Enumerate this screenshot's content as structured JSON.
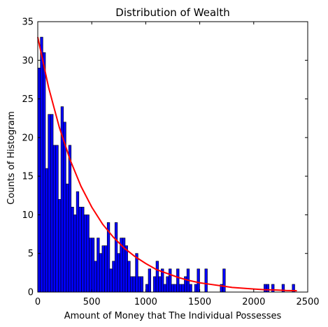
{
  "chart_data": {
    "type": "bar",
    "title": "Distribution of Wealth",
    "xlabel": "Amount of Money that The Individual Possesses",
    "ylabel": "Counts of Histogram",
    "xlim": [
      0,
      2500
    ],
    "ylim": [
      0,
      35
    ],
    "x_ticks": [
      0,
      500,
      1000,
      1500,
      2000,
      2500
    ],
    "y_ticks": [
      0,
      5,
      10,
      15,
      20,
      25,
      30,
      35
    ],
    "grid": false,
    "bar_color": "#0000ff",
    "bar_edge_color": "#000000",
    "series": [
      {
        "kind": "histogram",
        "bin_width": 23.8,
        "bins": [
          {
            "x": 0,
            "count": 29
          },
          {
            "x": 23.8,
            "count": 33
          },
          {
            "x": 47.6,
            "count": 31
          },
          {
            "x": 71.4,
            "count": 16
          },
          {
            "x": 95.2,
            "count": 23
          },
          {
            "x": 119,
            "count": 23
          },
          {
            "x": 142.8,
            "count": 19
          },
          {
            "x": 166.6,
            "count": 19
          },
          {
            "x": 190.4,
            "count": 12
          },
          {
            "x": 214.2,
            "count": 24
          },
          {
            "x": 238,
            "count": 22
          },
          {
            "x": 261.8,
            "count": 14
          },
          {
            "x": 285.6,
            "count": 19
          },
          {
            "x": 309.4,
            "count": 11
          },
          {
            "x": 333.2,
            "count": 10
          },
          {
            "x": 357,
            "count": 13
          },
          {
            "x": 380.8,
            "count": 11
          },
          {
            "x": 404.6,
            "count": 11
          },
          {
            "x": 428.4,
            "count": 10
          },
          {
            "x": 452.2,
            "count": 10
          },
          {
            "x": 476,
            "count": 7
          },
          {
            "x": 499.8,
            "count": 7
          },
          {
            "x": 523.6,
            "count": 4
          },
          {
            "x": 547.4,
            "count": 7
          },
          {
            "x": 571.2,
            "count": 5
          },
          {
            "x": 595,
            "count": 6
          },
          {
            "x": 618.8,
            "count": 6
          },
          {
            "x": 642.6,
            "count": 9
          },
          {
            "x": 666.4,
            "count": 3
          },
          {
            "x": 690.2,
            "count": 4
          },
          {
            "x": 714,
            "count": 9
          },
          {
            "x": 737.8,
            "count": 5
          },
          {
            "x": 761.6,
            "count": 7
          },
          {
            "x": 785.4,
            "count": 7
          },
          {
            "x": 809.2,
            "count": 6
          },
          {
            "x": 833,
            "count": 4
          },
          {
            "x": 856.8,
            "count": 2
          },
          {
            "x": 880.6,
            "count": 2
          },
          {
            "x": 904.4,
            "count": 5
          },
          {
            "x": 928.2,
            "count": 2
          },
          {
            "x": 952,
            "count": 2
          },
          {
            "x": 975.8,
            "count": 0
          },
          {
            "x": 999.6,
            "count": 1
          },
          {
            "x": 1023.4,
            "count": 3
          },
          {
            "x": 1047.2,
            "count": 0
          },
          {
            "x": 1071,
            "count": 2
          },
          {
            "x": 1094.8,
            "count": 4
          },
          {
            "x": 1118.6,
            "count": 2
          },
          {
            "x": 1142.4,
            "count": 3
          },
          {
            "x": 1166.2,
            "count": 1
          },
          {
            "x": 1190,
            "count": 2
          },
          {
            "x": 1213.8,
            "count": 3
          },
          {
            "x": 1237.6,
            "count": 1
          },
          {
            "x": 1261.4,
            "count": 1
          },
          {
            "x": 1285.2,
            "count": 3
          },
          {
            "x": 1309,
            "count": 1
          },
          {
            "x": 1332.8,
            "count": 1
          },
          {
            "x": 1356.6,
            "count": 2
          },
          {
            "x": 1380.4,
            "count": 3
          },
          {
            "x": 1404.2,
            "count": 1
          },
          {
            "x": 1428,
            "count": 0
          },
          {
            "x": 1451.8,
            "count": 1
          },
          {
            "x": 1475.6,
            "count": 3
          },
          {
            "x": 1499.4,
            "count": 0
          },
          {
            "x": 1523.2,
            "count": 0
          },
          {
            "x": 1547,
            "count": 3
          },
          {
            "x": 1570.8,
            "count": 0
          },
          {
            "x": 1594.6,
            "count": 0
          },
          {
            "x": 1618.4,
            "count": 0
          },
          {
            "x": 1642.2,
            "count": 0
          },
          {
            "x": 1666,
            "count": 0
          },
          {
            "x": 1689.8,
            "count": 1
          },
          {
            "x": 1713.6,
            "count": 3
          },
          {
            "x": 1737.4,
            "count": 0
          },
          {
            "x": 2094.4,
            "count": 1
          },
          {
            "x": 2118.2,
            "count": 1
          },
          {
            "x": 2165.8,
            "count": 1
          },
          {
            "x": 2261,
            "count": 1
          },
          {
            "x": 2356.2,
            "count": 1
          }
        ]
      },
      {
        "kind": "line",
        "color": "#ff0000",
        "x": [
          0,
          100,
          200,
          300,
          400,
          500,
          600,
          700,
          800,
          900,
          1000,
          1100,
          1200,
          1300,
          1400,
          1500,
          1600,
          1700,
          1800,
          1900,
          2000,
          2100,
          2200,
          2300,
          2400
        ],
        "y": [
          33,
          26.5,
          21.3,
          17.1,
          13.7,
          11.0,
          8.8,
          7.1,
          5.7,
          4.6,
          3.7,
          2.9,
          2.4,
          1.9,
          1.5,
          1.2,
          1.0,
          0.8,
          0.6,
          0.5,
          0.4,
          0.3,
          0.27,
          0.2,
          0.17
        ]
      }
    ]
  }
}
